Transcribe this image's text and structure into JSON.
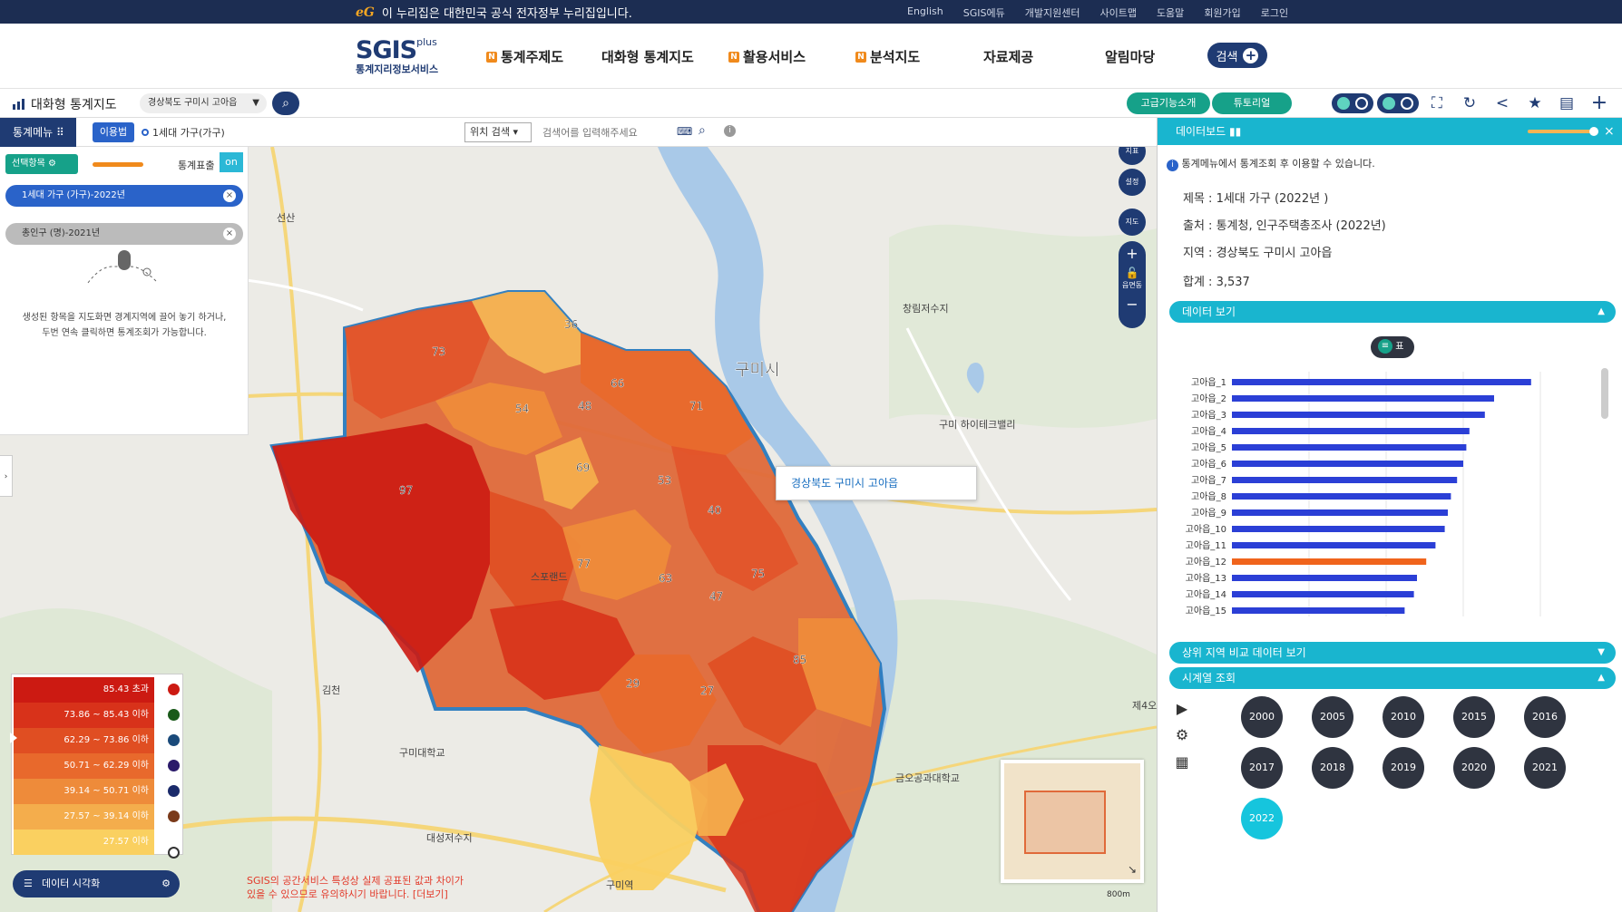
{
  "gov_banner": {
    "logo": "eG",
    "message": "이 누리집은 대한민국 공식 전자정부 누리집입니다.",
    "links": [
      "English",
      "SGIS에듀",
      "개발지원센터",
      "사이트맵",
      "도움말",
      "회원가입",
      "로그인"
    ]
  },
  "header": {
    "logo_main": "SGIS",
    "logo_plus": "plus",
    "logo_sub": "통계지리정보서비스",
    "nav": [
      {
        "label": "통계주제도",
        "badge": "N"
      },
      {
        "label": "대화형 통계지도",
        "badge": ""
      },
      {
        "label": "활용서비스",
        "badge": "N"
      },
      {
        "label": "분석지도",
        "badge": "N"
      },
      {
        "label": "자료제공",
        "badge": ""
      },
      {
        "label": "알림마당",
        "badge": ""
      }
    ],
    "search_label": "검색"
  },
  "toolbar": {
    "title": "대화형 통계지도",
    "region": "경상북도 구미시 고아읍",
    "advanced_label": "고급기능소개",
    "tutorial_label": "튜토리얼"
  },
  "subbar": {
    "stat_menu": "통계메뉴",
    "usage_button": "이용법",
    "usage_label": "1세대 가구(가구)",
    "location_select": "위치 검색",
    "search_placeholder": "검색어를 입력해주세요"
  },
  "left_panel": {
    "select_item": "선택항목",
    "stat_view_label": "통계표출",
    "stat_view_state": "on",
    "layers": [
      {
        "label": "1세대 가구 (가구)-2022년",
        "active": true
      },
      {
        "label": "총인구 (명)-2021년",
        "active": false
      }
    ],
    "hint_line1": "생성된 항목을 지도화면 경계지역에 끌어 놓기 하거나,",
    "hint_line2": "두번 연속 클릭하면 통계조회가 가능합니다."
  },
  "legend": {
    "ranges": [
      {
        "label": "85.43 초과",
        "color": "#cc1a12"
      },
      {
        "label": "73.86 ~ 85.43 이하",
        "color": "#d8321a"
      },
      {
        "label": "62.29 ~ 73.86 이하",
        "color": "#e04e22"
      },
      {
        "label": "50.71 ~ 62.29 이하",
        "color": "#e8692c"
      },
      {
        "label": "39.14 ~ 50.71 이하",
        "color": "#ee8b3a"
      },
      {
        "label": "27.57 ~ 39.14 이하",
        "color": "#f4ad4c"
      },
      {
        "label": "27.57 이하",
        "color": "#fad060"
      }
    ],
    "data_vis_label": "데이터 시각화"
  },
  "map": {
    "city_label": "구미시",
    "tooltip": "경상북도 구미시 고아읍",
    "places": [
      "선산",
      "김천",
      "구미대학교",
      "대성저수지",
      "구미역",
      "구미 하이테크밸리",
      "금오공과대학교",
      "창림저수지",
      "제4오",
      "스포랜드"
    ],
    "region_values": [
      "73",
      "36",
      "66",
      "54",
      "48",
      "71",
      "69",
      "53",
      "97",
      "40",
      "77",
      "63",
      "75",
      "47",
      "85",
      "27",
      "29"
    ],
    "notice_line1": "SGIS의 공간서비스 특성상 실제 공표된 값과 차이가",
    "notice_line2": "있을 수 있으므로 유의하시기 바랍니다. [더보기]",
    "side_buttons": [
      "지표",
      "설정",
      "지도"
    ],
    "eupmyeondong_label": "읍면동",
    "scale_label": "800m"
  },
  "dashboard": {
    "title": "데이터보드",
    "info": "통계메뉴에서 통계조회 후 이용할 수 있습니다.",
    "meta_title": "제목 : 1세대 가구 (2022년 )",
    "meta_source": "출처 : 통계청, 인구주택총조사 (2022년)",
    "meta_region": "지역 : 경상북도 구미시 고아읍",
    "meta_total": "합계 : 3,537",
    "data_view": "데이터 보기",
    "table_toggle": "표",
    "top_compare": "상위 지역 비교 데이터 보기",
    "timeseries": "시계열 조회",
    "years": [
      "2000",
      "2005",
      "2010",
      "2015",
      "2016",
      "2017",
      "2018",
      "2019",
      "2020",
      "2021",
      "2022"
    ],
    "selected_year": "2022"
  },
  "chart_data": {
    "type": "bar",
    "orientation": "horizontal",
    "categories": [
      "고아읍_1",
      "고아읍_2",
      "고아읍_3",
      "고아읍_4",
      "고아읍_5",
      "고아읍_6",
      "고아읍_7",
      "고아읍_8",
      "고아읍_9",
      "고아읍_10",
      "고아읍_11",
      "고아읍_12",
      "고아읍_13",
      "고아읍_14",
      "고아읍_15"
    ],
    "values": [
      97,
      85,
      82,
      77,
      76,
      75,
      73,
      71,
      70,
      69,
      66,
      63,
      60,
      59,
      56
    ],
    "highlight_index": 11,
    "bar_color": "#2b3fd6",
    "highlight_color": "#f0641c",
    "xlim": [
      0,
      100
    ],
    "grid": true
  }
}
